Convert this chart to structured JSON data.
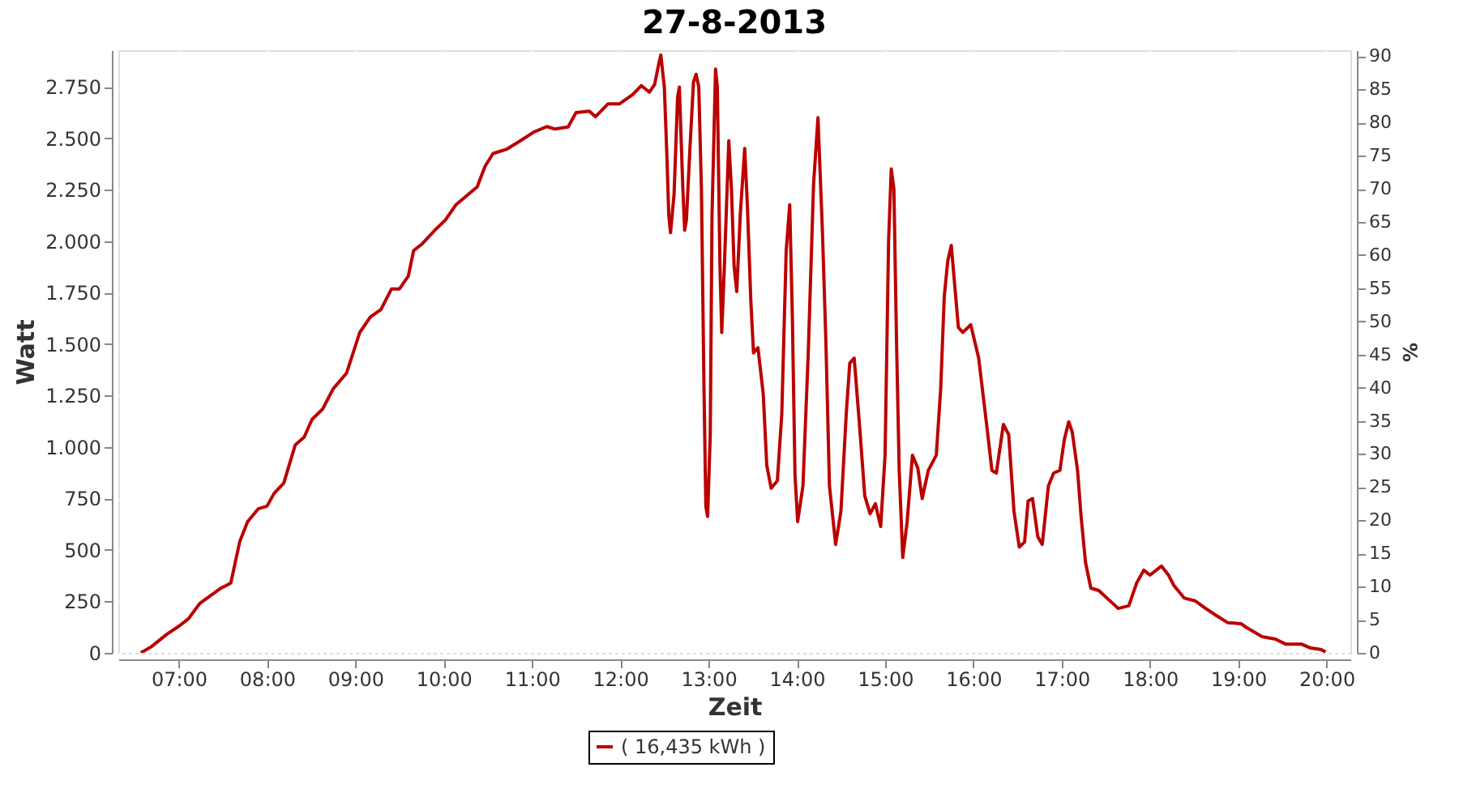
{
  "chart_data": {
    "type": "line",
    "title": "27-8-2013",
    "xlabel": "Zeit",
    "ylabel": "Watt",
    "y2label": "%",
    "xlim": [
      6.316,
      20.27
    ],
    "xticks": [
      {
        "value": 7,
        "label": "07:00"
      },
      {
        "value": 8,
        "label": "08:00"
      },
      {
        "value": 9,
        "label": "09:00"
      },
      {
        "value": 10,
        "label": "10:00"
      },
      {
        "value": 11,
        "label": "11:00"
      },
      {
        "value": 12,
        "label": "12:00"
      },
      {
        "value": 13,
        "label": "13:00"
      },
      {
        "value": 14,
        "label": "14:00"
      },
      {
        "value": 15,
        "label": "15:00"
      },
      {
        "value": 16,
        "label": "16:00"
      },
      {
        "value": 17,
        "label": "17:00"
      },
      {
        "value": 18,
        "label": "18:00"
      },
      {
        "value": 19,
        "label": "19:00"
      },
      {
        "value": 20,
        "label": "20:00"
      }
    ],
    "ylim": [
      0,
      2929
    ],
    "yticks": [
      0,
      250,
      500,
      750,
      {
        "value": 1000,
        "label": "1.000"
      },
      {
        "value": 1250,
        "label": "1.250"
      },
      {
        "value": 1500,
        "label": "1.500"
      },
      {
        "value": 1750,
        "label": "1.750"
      },
      {
        "value": 2000,
        "label": "2.000"
      },
      {
        "value": 2250,
        "label": "2.250"
      },
      {
        "value": 2500,
        "label": "2.500"
      },
      {
        "value": 2750,
        "label": "2.750"
      }
    ],
    "y2lim": [
      0,
      90.9
    ],
    "y2ticks": [
      0,
      5,
      10,
      15,
      20,
      25,
      30,
      35,
      40,
      45,
      50,
      55,
      60,
      65,
      70,
      75,
      80,
      85,
      90
    ],
    "grid": true,
    "legend": "bottom",
    "marker": "none",
    "line_style": "solid",
    "series": [
      {
        "name": "( 16,435 kWh )",
        "color": "#bb0000",
        "x": [
          6.57,
          6.69,
          6.87,
          7.0,
          7.11,
          7.24,
          7.36,
          7.48,
          7.54,
          7.59,
          7.69,
          7.78,
          7.9,
          8.0,
          8.08,
          8.19,
          8.32,
          8.42,
          8.51,
          8.63,
          8.75,
          8.9,
          9.05,
          9.17,
          9.29,
          9.41,
          9.5,
          9.6,
          9.66,
          9.75,
          9.9,
          10.02,
          10.14,
          10.38,
          10.47,
          10.56,
          10.71,
          10.87,
          11.02,
          11.17,
          11.26,
          11.41,
          11.5,
          11.65,
          11.72,
          11.86,
          11.99,
          12.14,
          12.24,
          12.33,
          12.39,
          12.43,
          12.46,
          12.5,
          12.53,
          12.55,
          12.57,
          12.61,
          12.65,
          12.67,
          12.71,
          12.73,
          12.75,
          12.79,
          12.83,
          12.86,
          12.89,
          12.92,
          12.95,
          12.97,
          12.99,
          13.02,
          13.04,
          13.08,
          13.1,
          13.13,
          13.15,
          13.18,
          13.23,
          13.26,
          13.29,
          13.32,
          13.36,
          13.41,
          13.44,
          13.48,
          13.51,
          13.56,
          13.62,
          13.66,
          13.71,
          13.78,
          13.83,
          13.88,
          13.92,
          13.95,
          13.98,
          14.01,
          14.07,
          14.13,
          14.19,
          14.24,
          14.29,
          14.33,
          14.37,
          14.44,
          14.5,
          14.56,
          14.6,
          14.65,
          14.71,
          14.77,
          14.83,
          14.89,
          14.95,
          15.0,
          15.04,
          15.07,
          15.1,
          15.13,
          15.16,
          15.2,
          15.25,
          15.31,
          15.37,
          15.42,
          15.49,
          15.58,
          15.63,
          15.67,
          15.71,
          15.75,
          15.79,
          15.83,
          15.88,
          15.97,
          16.06,
          16.15,
          16.21,
          16.26,
          16.34,
          16.4,
          16.46,
          16.52,
          16.58,
          16.62,
          16.67,
          16.73,
          16.78,
          16.85,
          16.91,
          16.98,
          17.03,
          17.08,
          17.12,
          17.18,
          17.22,
          17.27,
          17.33,
          17.42,
          17.64,
          17.76,
          17.85,
          17.93,
          18.0,
          18.13,
          18.21,
          18.27,
          18.39,
          18.51,
          18.63,
          18.76,
          18.88,
          19.03,
          19.09,
          19.27,
          19.42,
          19.54,
          19.72,
          19.81,
          19.93,
          19.99
        ],
        "values": [
          0,
          30,
          92,
          129,
          166,
          241,
          278,
          315,
          328,
          340,
          539,
          638,
          700,
          713,
          775,
          825,
          1011,
          1048,
          1135,
          1185,
          1284,
          1359,
          1557,
          1632,
          1669,
          1769,
          1769,
          1831,
          1955,
          1985,
          2054,
          2104,
          2178,
          2265,
          2365,
          2427,
          2447,
          2489,
          2531,
          2558,
          2546,
          2556,
          2626,
          2633,
          2606,
          2668,
          2668,
          2713,
          2757,
          2725,
          2762,
          2849,
          2906,
          2750,
          2402,
          2129,
          2042,
          2228,
          2700,
          2750,
          2253,
          2054,
          2104,
          2452,
          2775,
          2812,
          2750,
          2253,
          1259,
          713,
          663,
          1061,
          2129,
          2837,
          2750,
          1880,
          1557,
          1880,
          2489,
          2253,
          1880,
          1756,
          2129,
          2452,
          2178,
          1706,
          1458,
          1483,
          1259,
          912,
          800,
          837,
          1160,
          1955,
          2178,
          1632,
          862,
          638,
          812,
          1458,
          2278,
          2601,
          2054,
          1508,
          812,
          527,
          688,
          1160,
          1408,
          1433,
          1110,
          763,
          676,
          725,
          614,
          961,
          2005,
          2352,
          2253,
          1508,
          887,
          464,
          638,
          961,
          899,
          750,
          887,
          961,
          1284,
          1731,
          1905,
          1980,
          1781,
          1582,
          1557,
          1595,
          1433,
          1110,
          887,
          874,
          1110,
          1061,
          688,
          514,
          539,
          738,
          750,
          564,
          527,
          812,
          874,
          887,
          1036,
          1123,
          1073,
          887,
          663,
          440,
          315,
          303,
          216,
          229,
          340,
          402,
          378,
          422,
          378,
          328,
          266,
          253,
          216,
          179,
          147,
          142,
          124,
          79,
          67,
          42,
          42,
          25,
          17,
          5
        ]
      }
    ]
  }
}
